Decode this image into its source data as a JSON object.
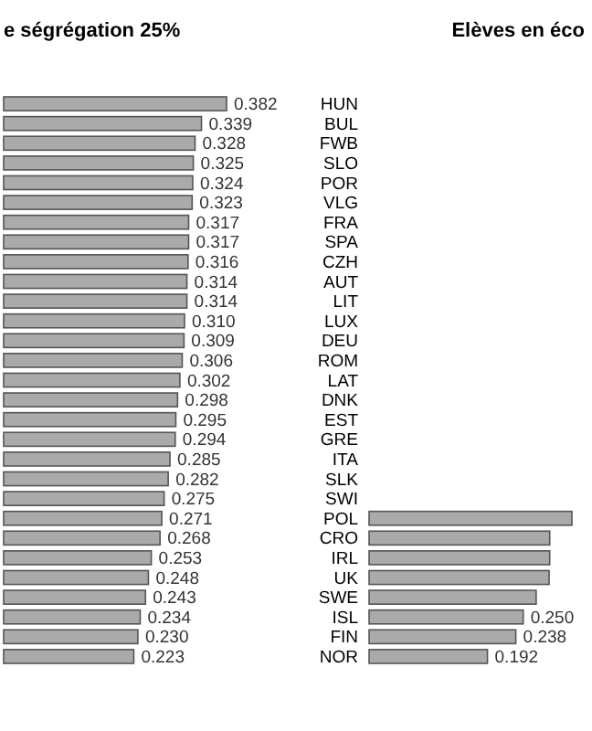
{
  "chart_data": [
    {
      "type": "bar",
      "orientation": "horizontal",
      "title": "e ségrégation 25%",
      "categories": [
        null,
        null,
        null,
        null,
        null,
        null,
        null,
        null,
        null,
        null,
        null,
        null,
        null,
        null,
        null,
        null,
        null,
        null,
        null,
        null,
        null,
        null,
        null,
        null,
        null,
        null,
        null,
        null,
        null
      ],
      "values": [
        0.382,
        0.339,
        0.328,
        0.325,
        0.324,
        0.323,
        0.317,
        0.317,
        0.316,
        0.314,
        0.314,
        0.31,
        0.309,
        0.306,
        0.302,
        0.298,
        0.295,
        0.294,
        0.285,
        0.282,
        0.275,
        0.271,
        0.268,
        0.253,
        0.248,
        0.243,
        0.234,
        0.23,
        0.223
      ],
      "value_labels": [
        "0.382",
        "0.339",
        "0.328",
        "0.325",
        "0.324",
        "0.323",
        "0.317",
        "0.317",
        "0.316",
        "0.314",
        "0.314",
        "0.310",
        "0.309",
        "0.306",
        "0.302",
        "0.298",
        "0.295",
        "0.294",
        "0.285",
        "0.282",
        "0.275",
        "0.271",
        "0.268",
        "0.253",
        "0.248",
        "0.243",
        "0.234",
        "0.230",
        "0.223"
      ],
      "color": "#aaaaaa",
      "tick_labels": false
    },
    {
      "type": "bar",
      "orientation": "horizontal",
      "title": "Elèves en éco",
      "categories": [
        "HUN",
        "BUL",
        "FWB",
        "SLO",
        "POR",
        "VLG",
        "FRA",
        "SPA",
        "CZH",
        "AUT",
        "LIT",
        "LUX",
        "DEU",
        "ROM",
        "LAT",
        "DNK",
        "EST",
        "GRE",
        "ITA",
        "SLK",
        "SWI",
        "POL",
        "CRO",
        "IRL",
        "UK",
        "SWE",
        "ISL",
        "FIN",
        "NOR"
      ],
      "values": [
        null,
        null,
        null,
        null,
        null,
        null,
        null,
        null,
        null,
        null,
        null,
        null,
        null,
        null,
        null,
        null,
        null,
        null,
        null,
        null,
        null,
        0.329,
        0.293,
        0.293,
        0.292,
        0.271,
        0.25,
        0.238,
        0.192
      ],
      "value_labels": [
        null,
        null,
        null,
        null,
        null,
        null,
        null,
        null,
        null,
        null,
        null,
        null,
        null,
        null,
        null,
        null,
        null,
        null,
        null,
        null,
        null,
        null,
        null,
        null,
        null,
        null,
        "0.250",
        "0.238",
        "0.192"
      ],
      "color": "#aaaaaa",
      "tick_labels": "y"
    }
  ]
}
